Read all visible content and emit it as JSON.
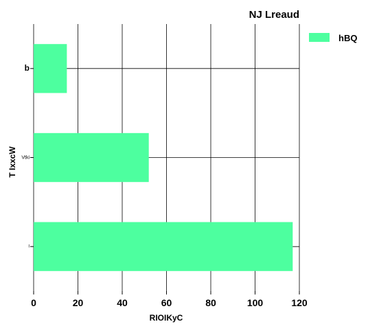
{
  "chart_data": {
    "type": "bar",
    "orientation": "horizontal",
    "title": "NJ Lreaud",
    "xlabel": "RIOIKyC",
    "ylabel": "T  IxxcW",
    "categories": [
      "b",
      "Vtki",
      "I"
    ],
    "series": [
      {
        "name": "hBQ",
        "values": [
          15,
          52,
          117
        ],
        "color": "#4dff9f"
      }
    ],
    "xlim": [
      0,
      120
    ],
    "xticks": [
      0,
      20,
      40,
      60,
      80,
      100,
      120
    ],
    "grid": true,
    "legend_position": "top-right"
  }
}
